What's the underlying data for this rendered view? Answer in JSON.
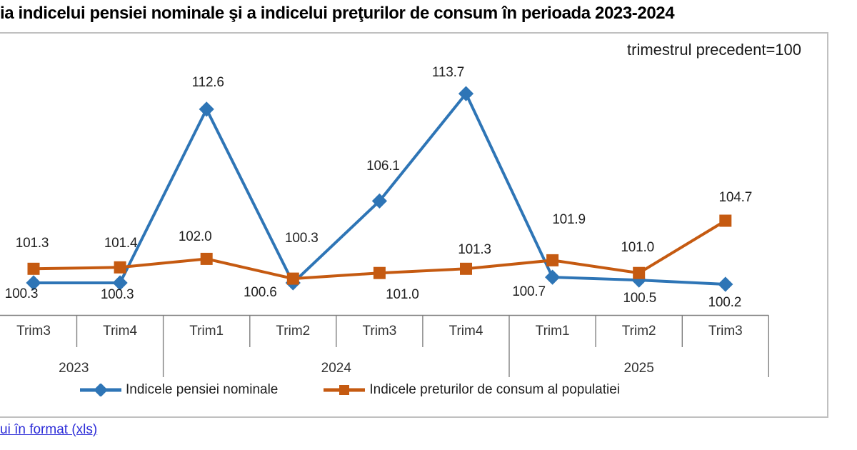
{
  "page": {
    "title": "ia indicelui pensiei nominale şi a indicelui preţurilor de consum în perioada 2023-2024",
    "link_text": "ui în format (xls)"
  },
  "colors": {
    "series_blue": "#2E75B6",
    "series_orange": "#C55A11",
    "axis_gray": "#808080",
    "frame_border": "#C0C0C0",
    "link_blue": "#2D2DD8",
    "text_dark": "#1F1F1F"
  },
  "chart_data": {
    "type": "line",
    "title": "ia indicelui pensiei nominale şi a indicelui preţurilor de consum în perioada 2023-2024",
    "subtitle": "trimestrul precedent=100",
    "categories": [
      "Trim3",
      "Trim4",
      "Trim1",
      "Trim2",
      "Trim3",
      "Trim4",
      "Trim1",
      "Trim2",
      "Trim3"
    ],
    "year_groups": [
      {
        "label": "2023",
        "span": 2
      },
      {
        "label": "2024",
        "span": 4
      },
      {
        "label": "2025",
        "span": 3
      }
    ],
    "series": [
      {
        "name": "Indicele pensiei nominale",
        "color": "#2E75B6",
        "marker": "diamond",
        "values": [
          100.3,
          100.3,
          112.6,
          100.3,
          106.1,
          113.7,
          100.7,
          100.5,
          100.2
        ],
        "label_offsets": [
          [
            -17,
            16
          ],
          [
            -4,
            17
          ],
          [
            2,
            -37
          ],
          [
            12,
            -62
          ],
          [
            5,
            -48
          ],
          [
            -25,
            -29
          ],
          [
            -33,
            21
          ],
          [
            1,
            26
          ],
          [
            -1,
            26
          ]
        ]
      },
      {
        "name": "Indicele preturilor de consum al populatiei",
        "color": "#C55A11",
        "marker": "square",
        "values": [
          101.3,
          101.4,
          102.0,
          100.6,
          101.0,
          101.3,
          101.9,
          101.0,
          104.7
        ],
        "label_offsets": [
          [
            -2,
            -35
          ],
          [
            1,
            -33
          ],
          [
            -16,
            -30
          ],
          [
            -46,
            20
          ],
          [
            32,
            31
          ],
          [
            12,
            -26
          ],
          [
            23,
            -56
          ],
          [
            -2,
            -35
          ],
          [
            14,
            -32
          ]
        ]
      }
    ],
    "value_axis": {
      "min": 98,
      "labels_visible": false
    },
    "grid": false,
    "legend_position": "bottom"
  }
}
